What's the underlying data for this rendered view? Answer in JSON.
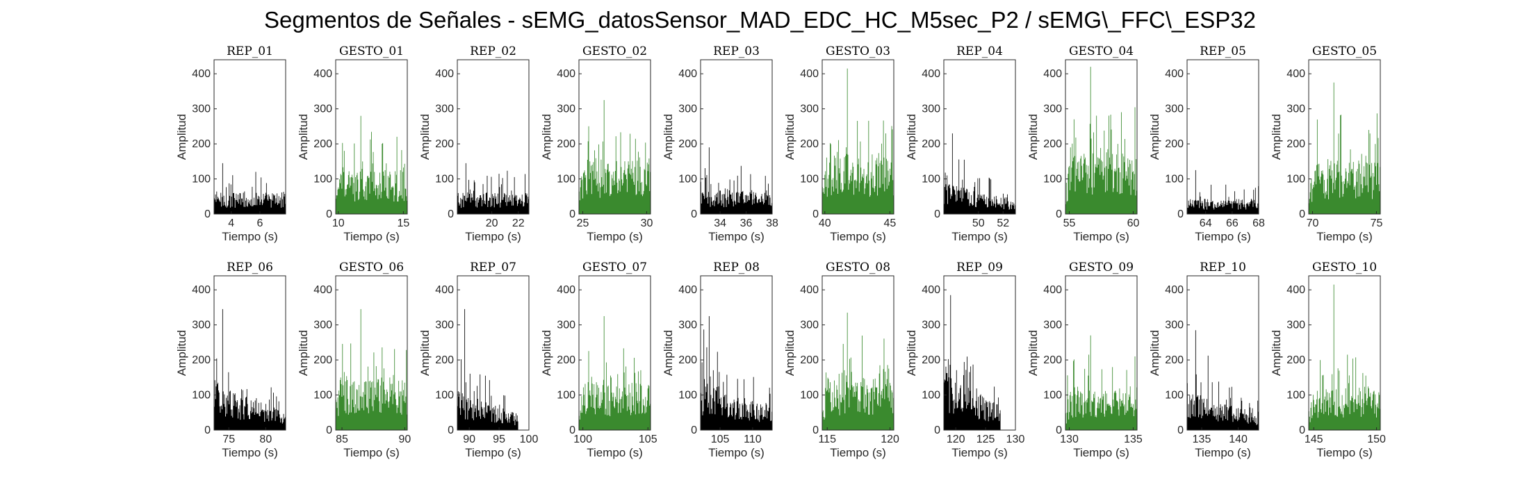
{
  "figure": {
    "title": "Segmentos de Señales - sEMG_datosSensor_MAD_EDC_HC_M5sec_P2 / sEMG\\_FFC\\_ESP32"
  },
  "colors": {
    "rep": "#000000",
    "gesto": "#3a8a2e"
  },
  "chart_data": [
    {
      "type": "bar",
      "title": "REP_01",
      "xlabel": "Tiempo (s)",
      "ylabel": "Amplitud",
      "xlim": [
        2.8,
        7.8
      ],
      "ylim": [
        0,
        440
      ],
      "xticks": [
        4,
        6
      ],
      "yticks": [
        0,
        100,
        200,
        300,
        400
      ],
      "kind": "rep",
      "t_start": 2.8,
      "t_end": 7.8,
      "base": 50,
      "spread": 70,
      "peak": 145
    },
    {
      "type": "bar",
      "title": "GESTO_01",
      "xlabel": "Tiempo (s)",
      "ylabel": "Amplitud",
      "xlim": [
        9.8,
        15.3
      ],
      "ylim": [
        0,
        440
      ],
      "xticks": [
        10,
        15
      ],
      "yticks": [
        0,
        100,
        200,
        300,
        400
      ],
      "kind": "gesto",
      "t_start": 9.8,
      "t_end": 15.3,
      "base": 100,
      "spread": 120,
      "peak": 280
    },
    {
      "type": "bar",
      "title": "REP_02",
      "xlabel": "Tiempo (s)",
      "ylabel": "Amplitud",
      "xlim": [
        17.4,
        22.8
      ],
      "ylim": [
        0,
        440
      ],
      "xticks": [
        20,
        22
      ],
      "yticks": [
        0,
        100,
        200,
        300,
        400
      ],
      "kind": "rep",
      "t_start": 17.4,
      "t_end": 22.8,
      "base": 50,
      "spread": 80,
      "peak": 145
    },
    {
      "type": "bar",
      "title": "GESTO_02",
      "xlabel": "Tiempo (s)",
      "ylabel": "Amplitud",
      "xlim": [
        24.7,
        30.3
      ],
      "ylim": [
        0,
        440
      ],
      "xticks": [
        25,
        30
      ],
      "yticks": [
        0,
        100,
        200,
        300,
        400
      ],
      "kind": "gesto",
      "t_start": 24.7,
      "t_end": 30.3,
      "base": 130,
      "spread": 140,
      "peak": 325
    },
    {
      "type": "bar",
      "title": "REP_03",
      "xlabel": "Tiempo (s)",
      "ylabel": "Amplitud",
      "xlim": [
        32.5,
        38
      ],
      "ylim": [
        0,
        440
      ],
      "xticks": [
        34,
        36,
        38
      ],
      "yticks": [
        0,
        100,
        200,
        300,
        400
      ],
      "kind": "rep",
      "t_start": 32.5,
      "t_end": 38,
      "base": 55,
      "spread": 80,
      "peak": 190
    },
    {
      "type": "bar",
      "title": "GESTO_03",
      "xlabel": "Tiempo (s)",
      "ylabel": "Amplitud",
      "xlim": [
        39.8,
        45.3
      ],
      "ylim": [
        0,
        440
      ],
      "xticks": [
        40,
        45
      ],
      "yticks": [
        0,
        100,
        200,
        300,
        400
      ],
      "kind": "gesto",
      "t_start": 39.8,
      "t_end": 45.3,
      "base": 140,
      "spread": 160,
      "peak": 415
    },
    {
      "type": "bar",
      "title": "REP_04",
      "xlabel": "Tiempo (s)",
      "ylabel": "Amplitud",
      "xlim": [
        47.2,
        53
      ],
      "ylim": [
        0,
        440
      ],
      "xticks": [
        50,
        52
      ],
      "yticks": [
        0,
        100,
        200,
        300,
        400
      ],
      "kind": "rep",
      "t_start": 47.2,
      "t_end": 53,
      "base": 50,
      "spread": 70,
      "peak": 230
    },
    {
      "type": "bar",
      "title": "GESTO_04",
      "xlabel": "Tiempo (s)",
      "ylabel": "Amplitud",
      "xlim": [
        54.7,
        60.3
      ],
      "ylim": [
        0,
        440
      ],
      "xticks": [
        55,
        60
      ],
      "yticks": [
        0,
        100,
        200,
        300,
        400
      ],
      "kind": "gesto",
      "t_start": 54.7,
      "t_end": 60.3,
      "base": 140,
      "spread": 150,
      "peak": 420
    },
    {
      "type": "bar",
      "title": "REP_05",
      "xlabel": "Tiempo (s)",
      "ylabel": "Amplitud",
      "xlim": [
        62.6,
        68
      ],
      "ylim": [
        0,
        440
      ],
      "xticks": [
        64,
        66,
        68
      ],
      "yticks": [
        0,
        100,
        200,
        300,
        400
      ],
      "kind": "rep",
      "t_start": 62.6,
      "t_end": 68,
      "base": 35,
      "spread": 60,
      "peak": 125
    },
    {
      "type": "bar",
      "title": "GESTO_05",
      "xlabel": "Tiempo (s)",
      "ylabel": "Amplitud",
      "xlim": [
        69.7,
        75.3
      ],
      "ylim": [
        0,
        440
      ],
      "xticks": [
        70,
        75
      ],
      "yticks": [
        0,
        100,
        200,
        300,
        400
      ],
      "kind": "gesto",
      "t_start": 69.7,
      "t_end": 75.3,
      "base": 120,
      "spread": 150,
      "peak": 375
    },
    {
      "type": "bar",
      "title": "REP_06",
      "xlabel": "Tiempo (s)",
      "ylabel": "Amplitud",
      "xlim": [
        73,
        82.7
      ],
      "ylim": [
        0,
        440
      ],
      "xticks": [
        75,
        80
      ],
      "yticks": [
        0,
        100,
        200,
        300,
        400
      ],
      "kind": "rep",
      "t_start": 73,
      "t_end": 82.7,
      "base": 70,
      "spread": 110,
      "peak": 345
    },
    {
      "type": "bar",
      "title": "GESTO_06",
      "xlabel": "Tiempo (s)",
      "ylabel": "Amplitud",
      "xlim": [
        84.5,
        90.2
      ],
      "ylim": [
        0,
        440
      ],
      "xticks": [
        85,
        90
      ],
      "yticks": [
        0,
        100,
        200,
        300,
        400
      ],
      "kind": "gesto",
      "t_start": 84.5,
      "t_end": 90.2,
      "base": 120,
      "spread": 140,
      "peak": 345
    },
    {
      "type": "bar",
      "title": "REP_07",
      "xlabel": "Tiempo (s)",
      "ylabel": "Amplitud",
      "xlim": [
        88,
        100
      ],
      "ylim": [
        0,
        440
      ],
      "xticks": [
        90,
        95,
        100
      ],
      "yticks": [
        0,
        100,
        200,
        300,
        400
      ],
      "kind": "rep",
      "t_start": 88,
      "t_end": 98.2,
      "base": 60,
      "spread": 110,
      "peak": 345
    },
    {
      "type": "bar",
      "title": "GESTO_07",
      "xlabel": "Tiempo (s)",
      "ylabel": "Amplitud",
      "xlim": [
        99.7,
        105.2
      ],
      "ylim": [
        0,
        440
      ],
      "xticks": [
        100,
        105
      ],
      "yticks": [
        0,
        100,
        200,
        300,
        400
      ],
      "kind": "gesto",
      "t_start": 99.7,
      "t_end": 105.2,
      "base": 110,
      "spread": 130,
      "peak": 325
    },
    {
      "type": "bar",
      "title": "REP_08",
      "xlabel": "Tiempo (s)",
      "ylabel": "Amplitud",
      "xlim": [
        102,
        113
      ],
      "ylim": [
        0,
        440
      ],
      "xticks": [
        105,
        110
      ],
      "yticks": [
        0,
        100,
        200,
        300,
        400
      ],
      "kind": "rep",
      "t_start": 102,
      "t_end": 113,
      "base": 80,
      "spread": 110,
      "peak": 325
    },
    {
      "type": "bar",
      "title": "GESTO_08",
      "xlabel": "Tiempo (s)",
      "ylabel": "Amplitud",
      "xlim": [
        114.6,
        120.3
      ],
      "ylim": [
        0,
        440
      ],
      "xticks": [
        115,
        120
      ],
      "yticks": [
        0,
        100,
        200,
        300,
        400
      ],
      "kind": "gesto",
      "t_start": 114.6,
      "t_end": 120.3,
      "base": 120,
      "spread": 140,
      "peak": 335
    },
    {
      "type": "bar",
      "title": "REP_09",
      "xlabel": "Tiempo (s)",
      "ylabel": "Amplitud",
      "xlim": [
        118,
        130
      ],
      "ylim": [
        0,
        440
      ],
      "xticks": [
        120,
        125,
        130
      ],
      "yticks": [
        0,
        100,
        200,
        300,
        400
      ],
      "kind": "rep",
      "t_start": 118,
      "t_end": 127.5,
      "base": 90,
      "spread": 110,
      "peak": 385
    },
    {
      "type": "bar",
      "title": "GESTO_09",
      "xlabel": "Tiempo (s)",
      "ylabel": "Amplitud",
      "xlim": [
        129.7,
        135.3
      ],
      "ylim": [
        0,
        440
      ],
      "xticks": [
        130,
        135
      ],
      "yticks": [
        0,
        100,
        200,
        300,
        400
      ],
      "kind": "gesto",
      "t_start": 129.7,
      "t_end": 135.3,
      "base": 100,
      "spread": 120,
      "peak": 270
    },
    {
      "type": "bar",
      "title": "REP_10",
      "xlabel": "Tiempo (s)",
      "ylabel": "Amplitud",
      "xlim": [
        133,
        142.8
      ],
      "ylim": [
        0,
        440
      ],
      "xticks": [
        135,
        140
      ],
      "yticks": [
        0,
        100,
        200,
        300,
        400
      ],
      "kind": "rep",
      "t_start": 133,
      "t_end": 142.8,
      "base": 60,
      "spread": 100,
      "peak": 285
    },
    {
      "type": "bar",
      "title": "GESTO_10",
      "xlabel": "Tiempo (s)",
      "ylabel": "Amplitud",
      "xlim": [
        144.6,
        150.3
      ],
      "ylim": [
        0,
        440
      ],
      "xticks": [
        145,
        150
      ],
      "yticks": [
        0,
        100,
        200,
        300,
        400
      ],
      "kind": "gesto",
      "t_start": 144.6,
      "t_end": 150.3,
      "base": 100,
      "spread": 130,
      "peak": 415
    }
  ]
}
